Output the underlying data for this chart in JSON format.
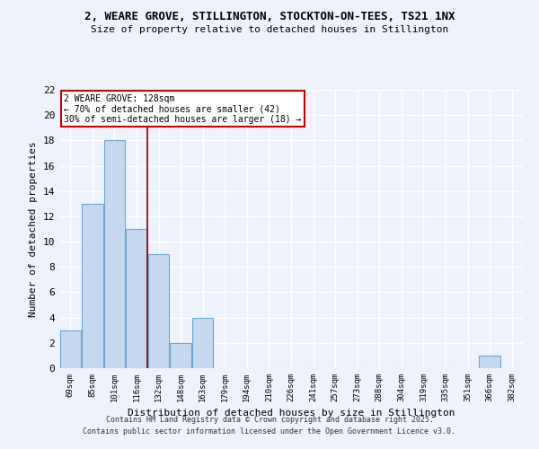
{
  "title": "2, WEARE GROVE, STILLINGTON, STOCKTON-ON-TEES, TS21 1NX",
  "subtitle": "Size of property relative to detached houses in Stillington",
  "xlabel": "Distribution of detached houses by size in Stillington",
  "ylabel": "Number of detached properties",
  "categories": [
    "69sqm",
    "85sqm",
    "101sqm",
    "116sqm",
    "132sqm",
    "148sqm",
    "163sqm",
    "179sqm",
    "194sqm",
    "210sqm",
    "226sqm",
    "241sqm",
    "257sqm",
    "273sqm",
    "288sqm",
    "304sqm",
    "319sqm",
    "335sqm",
    "351sqm",
    "366sqm",
    "382sqm"
  ],
  "values": [
    3,
    13,
    18,
    11,
    9,
    2,
    4,
    0,
    0,
    0,
    0,
    0,
    0,
    0,
    0,
    0,
    0,
    0,
    0,
    1,
    0
  ],
  "bar_color": "#c5d8f0",
  "bar_edge_color": "#6fa8d0",
  "background_color": "#eef2fa",
  "grid_color": "#ffffff",
  "red_line_x": 3.5,
  "annotation_line1": "2 WEARE GROVE: 128sqm",
  "annotation_line2": "← 70% of detached houses are smaller (42)",
  "annotation_line3": "30% of semi-detached houses are larger (18) →",
  "annotation_box_color": "#ffffff",
  "annotation_box_edge": "#cc0000",
  "ylim": [
    0,
    22
  ],
  "yticks": [
    0,
    2,
    4,
    6,
    8,
    10,
    12,
    14,
    16,
    18,
    20,
    22
  ],
  "footer1": "Contains HM Land Registry data © Crown copyright and database right 2025.",
  "footer2": "Contains public sector information licensed under the Open Government Licence v3.0."
}
